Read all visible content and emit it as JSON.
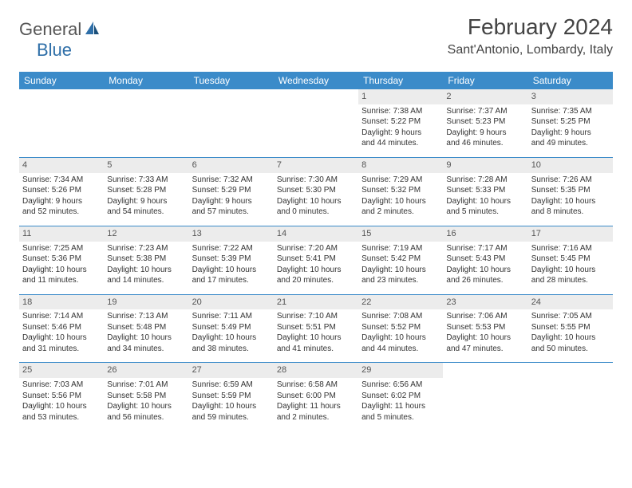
{
  "logo": {
    "general": "General",
    "blue": "Blue"
  },
  "title": "February 2024",
  "location": "Sant'Antonio, Lombardy, Italy",
  "colors": {
    "header_bg": "#3b8bc9",
    "header_text": "#ffffff",
    "daynum_bg": "#ececec",
    "border": "#3b8bc9",
    "logo_blue": "#2f6fa8",
    "logo_gray": "#555555"
  },
  "weekdays": [
    "Sunday",
    "Monday",
    "Tuesday",
    "Wednesday",
    "Thursday",
    "Friday",
    "Saturday"
  ],
  "weeks": [
    [
      null,
      null,
      null,
      null,
      {
        "n": "1",
        "sr": "Sunrise: 7:38 AM",
        "ss": "Sunset: 5:22 PM",
        "d1": "Daylight: 9 hours",
        "d2": "and 44 minutes."
      },
      {
        "n": "2",
        "sr": "Sunrise: 7:37 AM",
        "ss": "Sunset: 5:23 PM",
        "d1": "Daylight: 9 hours",
        "d2": "and 46 minutes."
      },
      {
        "n": "3",
        "sr": "Sunrise: 7:35 AM",
        "ss": "Sunset: 5:25 PM",
        "d1": "Daylight: 9 hours",
        "d2": "and 49 minutes."
      }
    ],
    [
      {
        "n": "4",
        "sr": "Sunrise: 7:34 AM",
        "ss": "Sunset: 5:26 PM",
        "d1": "Daylight: 9 hours",
        "d2": "and 52 minutes."
      },
      {
        "n": "5",
        "sr": "Sunrise: 7:33 AM",
        "ss": "Sunset: 5:28 PM",
        "d1": "Daylight: 9 hours",
        "d2": "and 54 minutes."
      },
      {
        "n": "6",
        "sr": "Sunrise: 7:32 AM",
        "ss": "Sunset: 5:29 PM",
        "d1": "Daylight: 9 hours",
        "d2": "and 57 minutes."
      },
      {
        "n": "7",
        "sr": "Sunrise: 7:30 AM",
        "ss": "Sunset: 5:30 PM",
        "d1": "Daylight: 10 hours",
        "d2": "and 0 minutes."
      },
      {
        "n": "8",
        "sr": "Sunrise: 7:29 AM",
        "ss": "Sunset: 5:32 PM",
        "d1": "Daylight: 10 hours",
        "d2": "and 2 minutes."
      },
      {
        "n": "9",
        "sr": "Sunrise: 7:28 AM",
        "ss": "Sunset: 5:33 PM",
        "d1": "Daylight: 10 hours",
        "d2": "and 5 minutes."
      },
      {
        "n": "10",
        "sr": "Sunrise: 7:26 AM",
        "ss": "Sunset: 5:35 PM",
        "d1": "Daylight: 10 hours",
        "d2": "and 8 minutes."
      }
    ],
    [
      {
        "n": "11",
        "sr": "Sunrise: 7:25 AM",
        "ss": "Sunset: 5:36 PM",
        "d1": "Daylight: 10 hours",
        "d2": "and 11 minutes."
      },
      {
        "n": "12",
        "sr": "Sunrise: 7:23 AM",
        "ss": "Sunset: 5:38 PM",
        "d1": "Daylight: 10 hours",
        "d2": "and 14 minutes."
      },
      {
        "n": "13",
        "sr": "Sunrise: 7:22 AM",
        "ss": "Sunset: 5:39 PM",
        "d1": "Daylight: 10 hours",
        "d2": "and 17 minutes."
      },
      {
        "n": "14",
        "sr": "Sunrise: 7:20 AM",
        "ss": "Sunset: 5:41 PM",
        "d1": "Daylight: 10 hours",
        "d2": "and 20 minutes."
      },
      {
        "n": "15",
        "sr": "Sunrise: 7:19 AM",
        "ss": "Sunset: 5:42 PM",
        "d1": "Daylight: 10 hours",
        "d2": "and 23 minutes."
      },
      {
        "n": "16",
        "sr": "Sunrise: 7:17 AM",
        "ss": "Sunset: 5:43 PM",
        "d1": "Daylight: 10 hours",
        "d2": "and 26 minutes."
      },
      {
        "n": "17",
        "sr": "Sunrise: 7:16 AM",
        "ss": "Sunset: 5:45 PM",
        "d1": "Daylight: 10 hours",
        "d2": "and 28 minutes."
      }
    ],
    [
      {
        "n": "18",
        "sr": "Sunrise: 7:14 AM",
        "ss": "Sunset: 5:46 PM",
        "d1": "Daylight: 10 hours",
        "d2": "and 31 minutes."
      },
      {
        "n": "19",
        "sr": "Sunrise: 7:13 AM",
        "ss": "Sunset: 5:48 PM",
        "d1": "Daylight: 10 hours",
        "d2": "and 34 minutes."
      },
      {
        "n": "20",
        "sr": "Sunrise: 7:11 AM",
        "ss": "Sunset: 5:49 PM",
        "d1": "Daylight: 10 hours",
        "d2": "and 38 minutes."
      },
      {
        "n": "21",
        "sr": "Sunrise: 7:10 AM",
        "ss": "Sunset: 5:51 PM",
        "d1": "Daylight: 10 hours",
        "d2": "and 41 minutes."
      },
      {
        "n": "22",
        "sr": "Sunrise: 7:08 AM",
        "ss": "Sunset: 5:52 PM",
        "d1": "Daylight: 10 hours",
        "d2": "and 44 minutes."
      },
      {
        "n": "23",
        "sr": "Sunrise: 7:06 AM",
        "ss": "Sunset: 5:53 PM",
        "d1": "Daylight: 10 hours",
        "d2": "and 47 minutes."
      },
      {
        "n": "24",
        "sr": "Sunrise: 7:05 AM",
        "ss": "Sunset: 5:55 PM",
        "d1": "Daylight: 10 hours",
        "d2": "and 50 minutes."
      }
    ],
    [
      {
        "n": "25",
        "sr": "Sunrise: 7:03 AM",
        "ss": "Sunset: 5:56 PM",
        "d1": "Daylight: 10 hours",
        "d2": "and 53 minutes."
      },
      {
        "n": "26",
        "sr": "Sunrise: 7:01 AM",
        "ss": "Sunset: 5:58 PM",
        "d1": "Daylight: 10 hours",
        "d2": "and 56 minutes."
      },
      {
        "n": "27",
        "sr": "Sunrise: 6:59 AM",
        "ss": "Sunset: 5:59 PM",
        "d1": "Daylight: 10 hours",
        "d2": "and 59 minutes."
      },
      {
        "n": "28",
        "sr": "Sunrise: 6:58 AM",
        "ss": "Sunset: 6:00 PM",
        "d1": "Daylight: 11 hours",
        "d2": "and 2 minutes."
      },
      {
        "n": "29",
        "sr": "Sunrise: 6:56 AM",
        "ss": "Sunset: 6:02 PM",
        "d1": "Daylight: 11 hours",
        "d2": "and 5 minutes."
      },
      null,
      null
    ]
  ]
}
